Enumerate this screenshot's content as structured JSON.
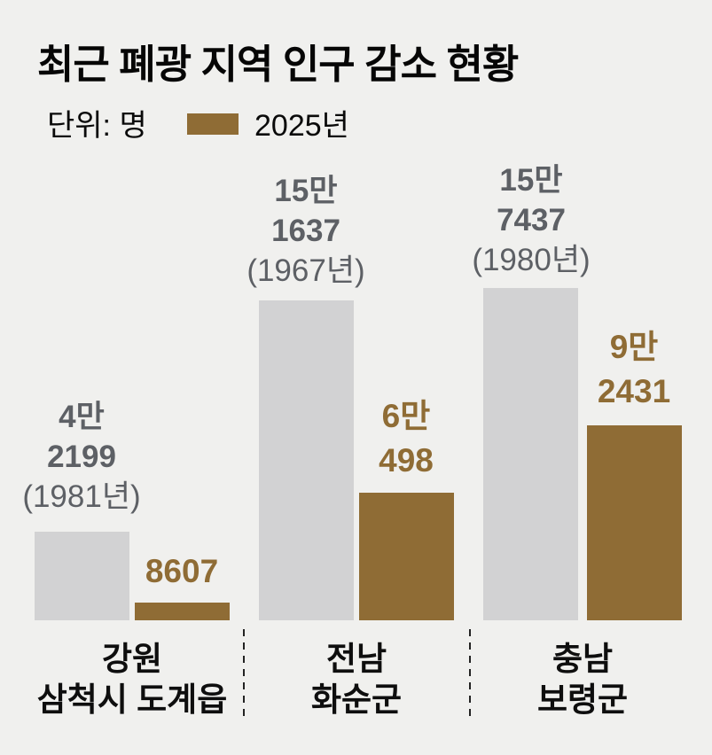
{
  "title": "최근 폐광 지역 인구 감소 현황",
  "unit_label": "단위: 명",
  "legend": {
    "year_label": "2025년",
    "swatch_color": "#8f6c35"
  },
  "colors": {
    "background": "#f0f0ee",
    "bar_past": "#d2d2d3",
    "bar_2025": "#8f6c35",
    "text_gray": "#5d6065",
    "text_black": "#0a0a0a"
  },
  "chart_data": {
    "type": "bar",
    "title": "최근 폐광 지역 인구 감소 현황",
    "unit": "명",
    "grid": false,
    "legend_position": "top-left",
    "ylim": [
      0,
      160000
    ],
    "categories": [
      "강원 삼척시 도계읍",
      "전남 화순군",
      "충남 보령군"
    ],
    "series": [
      {
        "name": "peak_population",
        "legend_visible": false,
        "color": "#d2d2d3",
        "values": [
          42199,
          151637,
          157437
        ],
        "peak_years": [
          "1981년",
          "1967년",
          "1980년"
        ]
      },
      {
        "name": "2025년",
        "legend_visible": true,
        "color": "#8f6c35",
        "values": [
          8607,
          60498,
          92431
        ]
      }
    ],
    "groups": [
      {
        "region": [
          "강원",
          "삼척시 도계읍"
        ],
        "past_value": 42199,
        "past_label": [
          "4만",
          "2199",
          "(1981년)"
        ],
        "current_value": 8607,
        "current_label": [
          "8607",
          ""
        ]
      },
      {
        "region": [
          "전남",
          "화순군"
        ],
        "past_value": 151637,
        "past_label": [
          "15만",
          "1637",
          "(1967년)"
        ],
        "current_value": 60498,
        "current_label": [
          "6만",
          "498"
        ]
      },
      {
        "region": [
          "충남",
          "보령군"
        ],
        "past_value": 157437,
        "past_label": [
          "15만",
          "7437",
          "(1980년)"
        ],
        "current_value": 92431,
        "current_label": [
          "9만",
          "2431"
        ]
      }
    ]
  }
}
